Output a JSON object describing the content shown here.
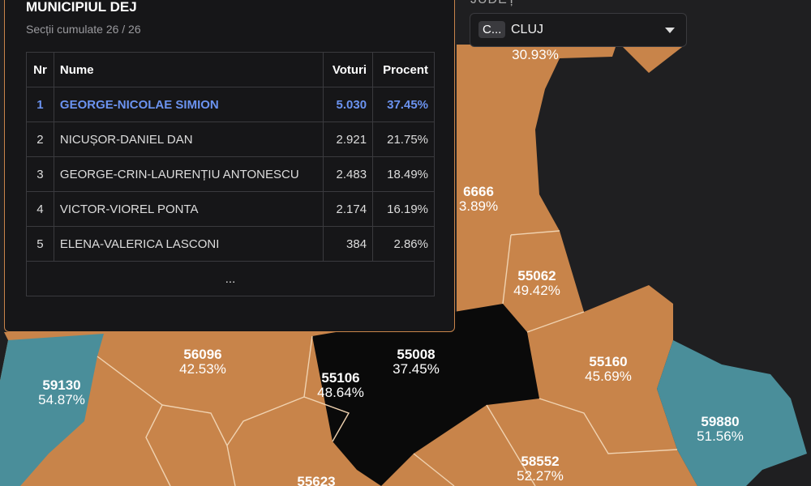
{
  "panel": {
    "title": "MUNICIPIUL DEJ",
    "subtitle": "Secții cumulate 26 / 26",
    "table": {
      "header": [
        "Nr",
        "Nume",
        "Voturi",
        "Procent"
      ],
      "rows": [
        [
          "1",
          "GEORGE-NICOLAE SIMION",
          "5.030",
          "37.45%"
        ],
        [
          "2",
          "NICUȘOR-DANIEL DAN",
          "2.921",
          "21.75%"
        ],
        [
          "3",
          "GEORGE-CRIN-LAURENȚIU ANTONESCU",
          "2.483",
          "18.49%"
        ],
        [
          "4",
          "VICTOR-VIOREL PONTA",
          "2.174",
          "16.19%"
        ],
        [
          "5",
          "ELENA-VALERICA LASCONI",
          "384",
          "2.86%"
        ]
      ],
      "more": "..."
    }
  },
  "county": {
    "label": "JUDEȚ",
    "code": "C...",
    "name": "CLUJ"
  },
  "map": {
    "regions": [
      {
        "code": "",
        "percent": "30.93%"
      },
      {
        "code": "6666",
        "percent": "3.89%"
      },
      {
        "code": "55062",
        "percent": "49.42%"
      },
      {
        "code": "56096",
        "percent": "42.53%"
      },
      {
        "code": "55008",
        "percent": "37.45%"
      },
      {
        "code": "55106",
        "percent": "48.64%"
      },
      {
        "code": "55160",
        "percent": "45.69%"
      },
      {
        "code": "59130",
        "percent": "54.87%"
      },
      {
        "code": "59880",
        "percent": "51.56%"
      },
      {
        "code": "58552",
        "percent": "52.27%"
      },
      {
        "code": "55623",
        "percent": ""
      }
    ]
  }
}
